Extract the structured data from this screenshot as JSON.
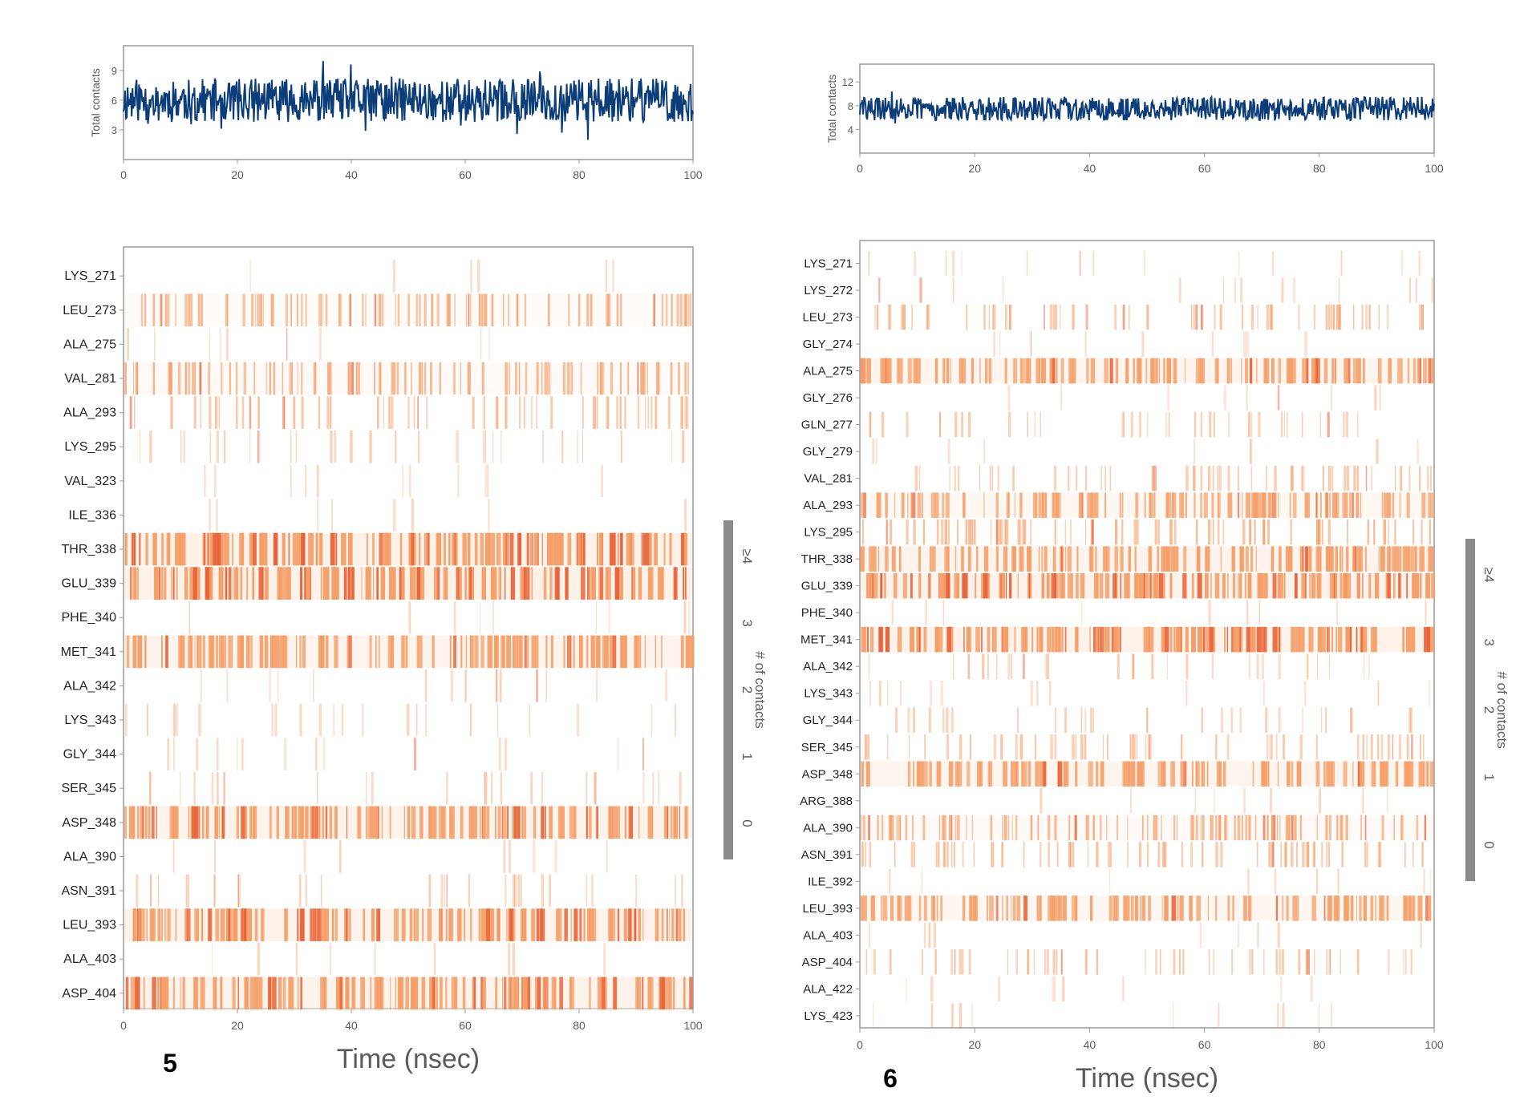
{
  "colors": {
    "line": "#0b3d78",
    "frame": "#9a9a9a",
    "colorbar": "#8a8a8a",
    "heat_light": "#fde7d8",
    "heat_full": "#f5a06a",
    "heat_dark": "#e8643a"
  },
  "chart_data": [
    {
      "panel_label": "5",
      "timeline": {
        "type": "line",
        "ylabel": "Total contacts",
        "yticks": [
          "3",
          "6",
          "9"
        ],
        "ytick_values": [
          3,
          6,
          9
        ],
        "ylim": [
          0,
          11.5
        ],
        "xlim": [
          0,
          100
        ],
        "xticks": [
          "0",
          "20",
          "40",
          "60",
          "80",
          "100"
        ],
        "mean": 6,
        "noise": 2.2,
        "seed": 11
      },
      "heatmap": {
        "type": "heatmap",
        "xlabel": "Time (nsec)",
        "xlim": [
          0,
          100
        ],
        "xticks": [
          "0",
          "20",
          "40",
          "60",
          "80",
          "100"
        ],
        "colorbar_label": "# of contacts",
        "colorbar_ticks": [
          "0",
          "1",
          "2",
          "3",
          "≥4"
        ],
        "residues": [
          "LYS_271",
          "LEU_273",
          "ALA_275",
          "VAL_281",
          "ALA_293",
          "LYS_295",
          "VAL_323",
          "ILE_336",
          "THR_338",
          "GLU_339",
          "PHE_340",
          "MET_341",
          "ALA_342",
          "LYS_343",
          "GLY_344",
          "SER_345",
          "ASP_348",
          "ALA_390",
          "ASN_391",
          "LEU_393",
          "ALA_403",
          "ASP_404"
        ],
        "contact_fraction": [
          0.0,
          0.55,
          0.02,
          0.6,
          0.35,
          0.15,
          0.03,
          0.01,
          0.98,
          0.98,
          0.02,
          0.85,
          0.05,
          0.1,
          0.05,
          0.12,
          0.9,
          0.02,
          0.15,
          0.9,
          0.02,
          0.9
        ]
      }
    },
    {
      "panel_label": "6",
      "timeline": {
        "type": "line",
        "ylabel": "Total contacts",
        "yticks": [
          "4",
          "8",
          "12"
        ],
        "ytick_values": [
          4,
          8,
          12
        ],
        "ylim": [
          0,
          15
        ],
        "xlim": [
          0,
          100
        ],
        "xticks": [
          "0",
          "20",
          "40",
          "60",
          "80",
          "100"
        ],
        "mean": 7.5,
        "noise": 2.0,
        "seed": 29
      },
      "heatmap": {
        "type": "heatmap",
        "xlabel": "Time (nsec)",
        "xlim": [
          0,
          100
        ],
        "xticks": [
          "0",
          "20",
          "40",
          "60",
          "80",
          "100"
        ],
        "colorbar_label": "# of contacts",
        "colorbar_ticks": [
          "0",
          "1",
          "2",
          "3",
          "≥4"
        ],
        "residues": [
          "LYS_271",
          "LYS_272",
          "LEU_273",
          "GLY_274",
          "ALA_275",
          "GLY_276",
          "GLN_277",
          "GLY_279",
          "VAL_281",
          "ALA_293",
          "LYS_295",
          "THR_338",
          "GLU_339",
          "PHE_340",
          "MET_341",
          "ALA_342",
          "LYS_343",
          "GLY_344",
          "SER_345",
          "ASP_348",
          "ARG_388",
          "ALA_390",
          "ASN_391",
          "ILE_392",
          "LEU_393",
          "ALA_403",
          "ASP_404",
          "ALA_422",
          "LYS_423"
        ],
        "contact_fraction": [
          0.05,
          0.05,
          0.35,
          0.02,
          0.8,
          0.02,
          0.2,
          0.02,
          0.3,
          0.7,
          0.45,
          0.85,
          0.95,
          0.02,
          0.95,
          0.15,
          0.05,
          0.15,
          0.3,
          0.8,
          0.02,
          0.6,
          0.4,
          0.02,
          0.75,
          0.02,
          0.3,
          0.02,
          0.03
        ]
      }
    }
  ]
}
